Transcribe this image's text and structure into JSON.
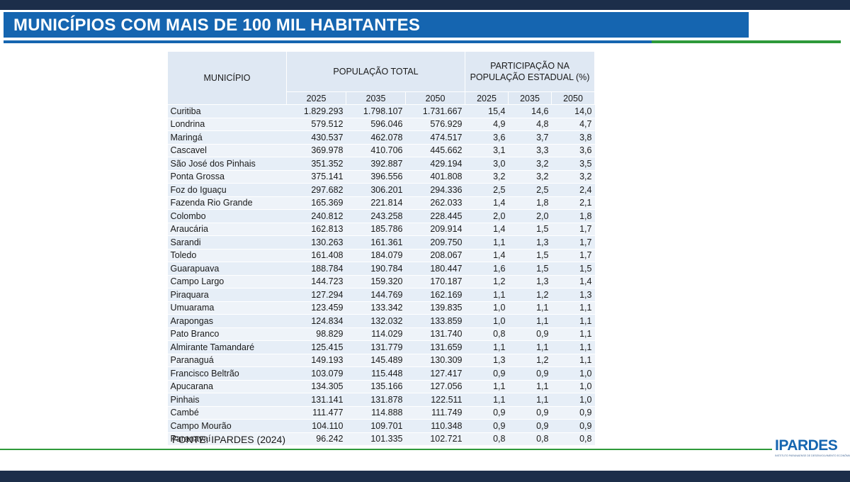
{
  "header": {
    "title": "MUNICÍPIOS COM MAIS DE 100 MIL HABITANTES"
  },
  "table": {
    "col_municipio": "MUNICÍPIO",
    "col_populacao": "POPULAÇÃO TOTAL",
    "col_participacao": "PARTICIPAÇÃO NA POPULAÇÃO ESTADUAL (%)",
    "years": [
      "2025",
      "2035",
      "2050"
    ],
    "rows": [
      [
        "Curitiba",
        "1.829.293",
        "1.798.107",
        "1.731.667",
        "15,4",
        "14,6",
        "14,0"
      ],
      [
        "Londrina",
        "579.512",
        "596.046",
        "576.929",
        "4,9",
        "4,8",
        "4,7"
      ],
      [
        "Maringá",
        "430.537",
        "462.078",
        "474.517",
        "3,6",
        "3,7",
        "3,8"
      ],
      [
        "Cascavel",
        "369.978",
        "410.706",
        "445.662",
        "3,1",
        "3,3",
        "3,6"
      ],
      [
        "São José dos Pinhais",
        "351.352",
        "392.887",
        "429.194",
        "3,0",
        "3,2",
        "3,5"
      ],
      [
        "Ponta Grossa",
        "375.141",
        "396.556",
        "401.808",
        "3,2",
        "3,2",
        "3,2"
      ],
      [
        "Foz do Iguaçu",
        "297.682",
        "306.201",
        "294.336",
        "2,5",
        "2,5",
        "2,4"
      ],
      [
        "Fazenda Rio Grande",
        "165.369",
        "221.814",
        "262.033",
        "1,4",
        "1,8",
        "2,1"
      ],
      [
        "Colombo",
        "240.812",
        "243.258",
        "228.445",
        "2,0",
        "2,0",
        "1,8"
      ],
      [
        "Araucária",
        "162.813",
        "185.786",
        "209.914",
        "1,4",
        "1,5",
        "1,7"
      ],
      [
        "Sarandi",
        "130.263",
        "161.361",
        "209.750",
        "1,1",
        "1,3",
        "1,7"
      ],
      [
        "Toledo",
        "161.408",
        "184.079",
        "208.067",
        "1,4",
        "1,5",
        "1,7"
      ],
      [
        "Guarapuava",
        "188.784",
        "190.784",
        "180.447",
        "1,6",
        "1,5",
        "1,5"
      ],
      [
        "Campo Largo",
        "144.723",
        "159.320",
        "170.187",
        "1,2",
        "1,3",
        "1,4"
      ],
      [
        "Piraquara",
        "127.294",
        "144.769",
        "162.169",
        "1,1",
        "1,2",
        "1,3"
      ],
      [
        "Umuarama",
        "123.459",
        "133.342",
        "139.835",
        "1,0",
        "1,1",
        "1,1"
      ],
      [
        "Arapongas",
        "124.834",
        "132.032",
        "133.859",
        "1,0",
        "1,1",
        "1,1"
      ],
      [
        "Pato Branco",
        "98.829",
        "114.029",
        "131.740",
        "0,8",
        "0,9",
        "1,1"
      ],
      [
        "Almirante Tamandaré",
        "125.415",
        "131.779",
        "131.659",
        "1,1",
        "1,1",
        "1,1"
      ],
      [
        "Paranaguá",
        "149.193",
        "145.489",
        "130.309",
        "1,3",
        "1,2",
        "1,1"
      ],
      [
        "Francisco Beltrão",
        "103.079",
        "115.448",
        "127.417",
        "0,9",
        "0,9",
        "1,0"
      ],
      [
        "Apucarana",
        "134.305",
        "135.166",
        "127.056",
        "1,1",
        "1,1",
        "1,0"
      ],
      [
        "Pinhais",
        "131.141",
        "131.878",
        "122.511",
        "1,1",
        "1,1",
        "1,0"
      ],
      [
        "Cambé",
        "111.477",
        "114.888",
        "111.749",
        "0,9",
        "0,9",
        "0,9"
      ],
      [
        "Campo Mourão",
        "104.110",
        "109.701",
        "110.348",
        "0,9",
        "0,9",
        "0,9"
      ],
      [
        "Paranavaí",
        "96.242",
        "101.335",
        "102.721",
        "0,8",
        "0,8",
        "0,8"
      ]
    ]
  },
  "footer": {
    "source": "FONTE: IPARDES (2024)",
    "logo_text": "IPARDES",
    "logo_subtitle": "INSTITUTO PARANAENSE DE DESENVOLVIMENTO ECONÔMICO E SOCIAL"
  },
  "colors": {
    "title_band": "#1565b0",
    "accent_green": "#2e9a3a",
    "dark_bar": "#1c2e4a",
    "table_header_bg": "#dfe8f3"
  }
}
